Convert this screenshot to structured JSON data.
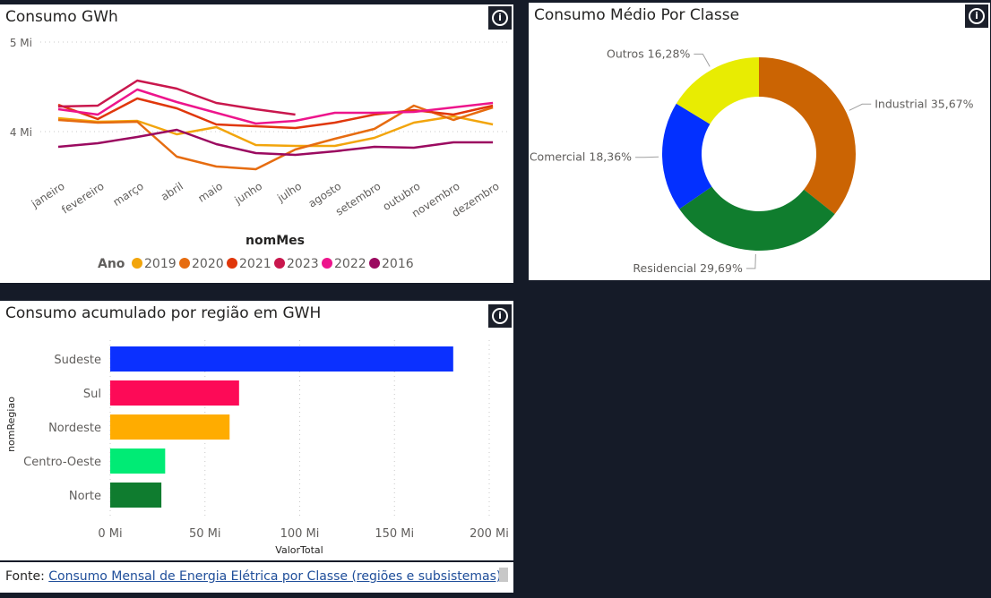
{
  "line_panel": {
    "title": "Consumo GWh",
    "xlabel": "nomMes",
    "legend_title": "Ano"
  },
  "donut_panel": {
    "title": "Consumo Médio Por Classe"
  },
  "bar_panel": {
    "title": "Consumo acumulado por região em GWH",
    "xlabel": "ValorTotal",
    "ylabel": "nomRegiao"
  },
  "footer": {
    "prefix": "Fonte:",
    "link_text": "Consumo Mensal de Energia Elétrica por Classe (regiões e subsistemas)"
  },
  "info_icon_glyph": "i",
  "chart_data": [
    {
      "type": "line",
      "title": "Consumo GWh",
      "xlabel": "nomMes",
      "ylabel": "",
      "y_unit": "GWh",
      "ylim": [
        3.5,
        5.0
      ],
      "y_ticks": [
        4,
        5
      ],
      "y_tick_labels": [
        "4 Mi",
        "5 Mi"
      ],
      "grid": true,
      "legend_placement": "bottom",
      "categories": [
        "janeiro",
        "fevereiro",
        "março",
        "abril",
        "maio",
        "junho",
        "julho",
        "agosto",
        "setembro",
        "outubro",
        "novembro",
        "dezembro"
      ],
      "series": [
        {
          "name": "2019",
          "color": "#F2A50C",
          "values": [
            4.15,
            4.11,
            4.12,
            3.97,
            4.05,
            3.85,
            3.84,
            3.84,
            3.93,
            4.1,
            4.17,
            4.08
          ]
        },
        {
          "name": "2020",
          "color": "#E66C10",
          "values": [
            4.13,
            4.1,
            4.11,
            3.72,
            3.61,
            3.58,
            3.8,
            3.92,
            4.03,
            4.29,
            4.13,
            4.27
          ]
        },
        {
          "name": "2021",
          "color": "#E0370B",
          "values": [
            4.3,
            4.14,
            4.37,
            4.26,
            4.08,
            4.06,
            4.04,
            4.1,
            4.19,
            4.24,
            4.19,
            4.29
          ]
        },
        {
          "name": "2023",
          "color": "#C9174D",
          "values": [
            4.28,
            4.29,
            4.57,
            4.48,
            4.32,
            4.25,
            4.19,
            null,
            null,
            null,
            null,
            null
          ]
        },
        {
          "name": "2022",
          "color": "#ED158C",
          "values": [
            4.25,
            4.19,
            4.47,
            4.33,
            4.21,
            4.09,
            4.12,
            4.21,
            4.21,
            4.22,
            4.27,
            4.32
          ]
        },
        {
          "name": "2016",
          "color": "#9B0A60",
          "values": [
            3.83,
            3.87,
            3.94,
            4.02,
            3.86,
            3.76,
            3.74,
            3.78,
            3.83,
            3.82,
            3.88,
            3.88
          ]
        }
      ]
    },
    {
      "type": "pie",
      "title": "Consumo Médio Por Classe",
      "donut": true,
      "slices": [
        {
          "label": "Industrial",
          "value": 35.67,
          "display": "Industrial 35,67%",
          "color": "#CB6403"
        },
        {
          "label": "Residencial",
          "value": 29.69,
          "display": "Residencial 29,69%",
          "color": "#107D2E"
        },
        {
          "label": "Comercial",
          "value": 18.36,
          "display": "Comercial 18,36%",
          "color": "#0330FF"
        },
        {
          "label": "Outros",
          "value": 16.28,
          "display": "Outros 16,28%",
          "color": "#E8EC02"
        }
      ]
    },
    {
      "type": "bar",
      "orientation": "horizontal",
      "title": "Consumo acumulado por região em GWH",
      "xlabel": "ValorTotal",
      "ylabel": "nomRegiao",
      "xlim": [
        0,
        200
      ],
      "x_ticks": [
        0,
        50,
        100,
        150,
        200
      ],
      "x_tick_labels": [
        "0 Mi",
        "50 Mi",
        "100 Mi",
        "150 Mi",
        "200 Mi"
      ],
      "grid": true,
      "categories": [
        "Sudeste",
        "Sul",
        "Nordeste",
        "Centro-Oeste",
        "Norte"
      ],
      "values": [
        181,
        68,
        63,
        29,
        27
      ],
      "colors": [
        "#0B30FF",
        "#FD0A57",
        "#FFAC00",
        "#00EB75",
        "#0F7C2F"
      ]
    }
  ]
}
